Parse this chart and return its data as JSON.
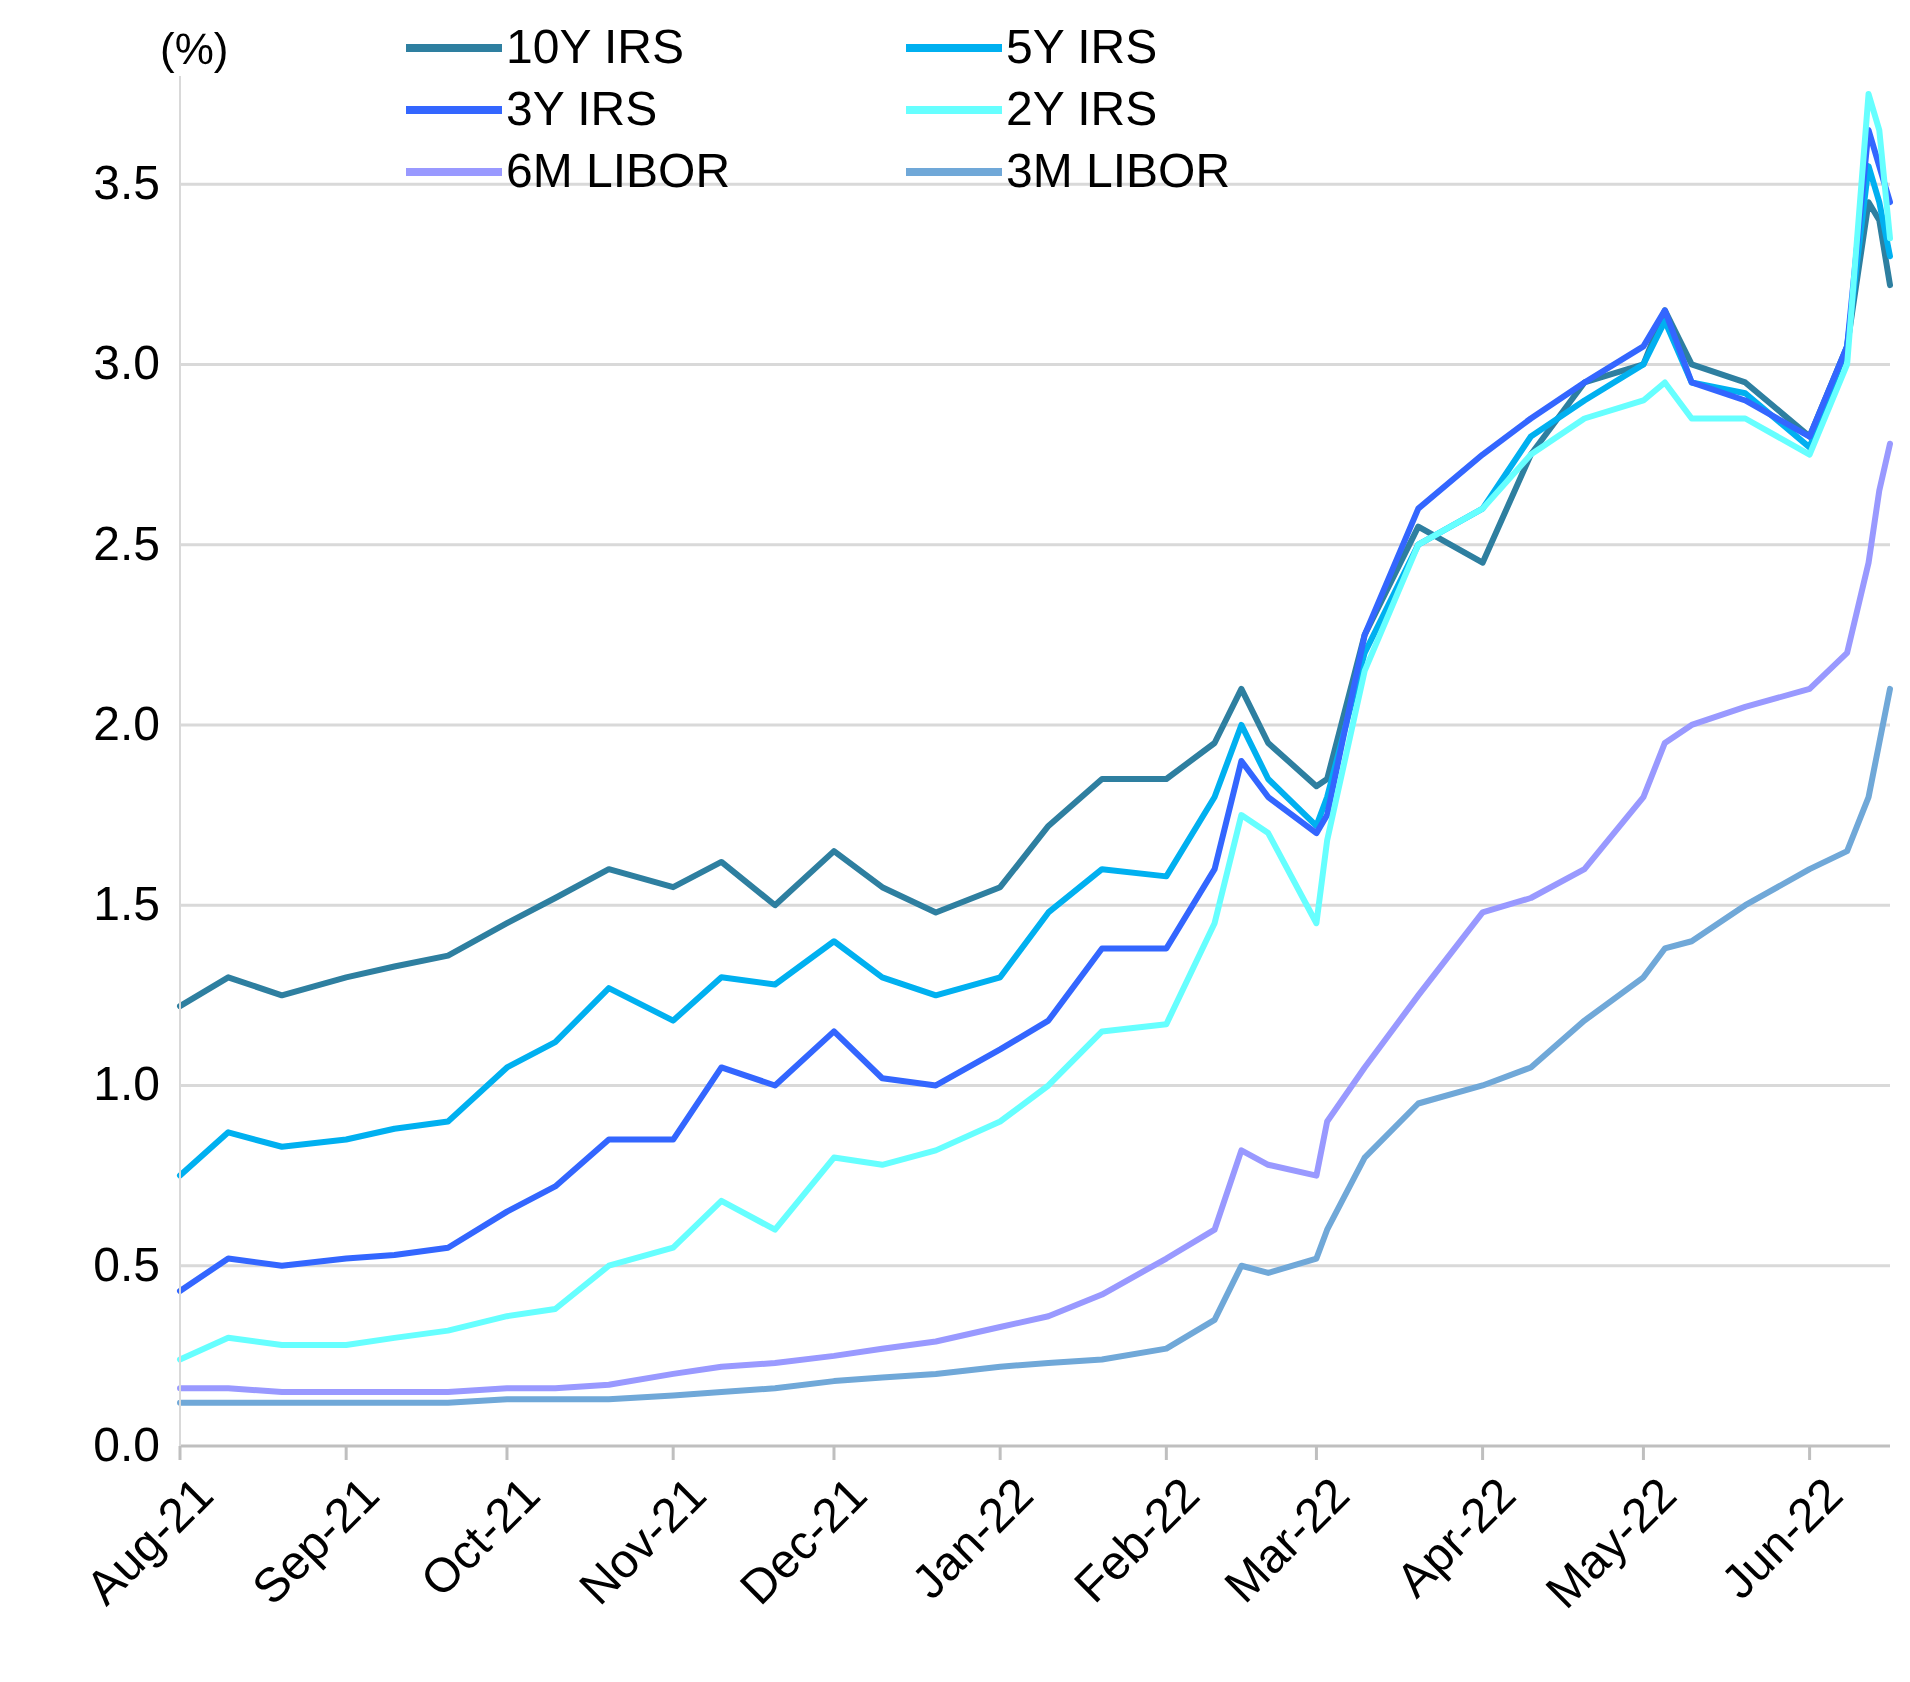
{
  "chart_data": {
    "type": "line",
    "ylabel": "(%)",
    "x": [
      "2021-08-01",
      "2021-08-10",
      "2021-08-20",
      "2021-09-01",
      "2021-09-10",
      "2021-09-20",
      "2021-10-01",
      "2021-10-10",
      "2021-10-20",
      "2021-11-01",
      "2021-11-10",
      "2021-11-20",
      "2021-12-01",
      "2021-12-10",
      "2021-12-20",
      "2022-01-01",
      "2022-01-10",
      "2022-01-20",
      "2022-02-01",
      "2022-02-10",
      "2022-02-15",
      "2022-02-20",
      "2022-03-01",
      "2022-03-03",
      "2022-03-10",
      "2022-03-20",
      "2022-04-01",
      "2022-04-10",
      "2022-04-20",
      "2022-05-01",
      "2022-05-05",
      "2022-05-10",
      "2022-05-20",
      "2022-06-01",
      "2022-06-08",
      "2022-06-12",
      "2022-06-14",
      "2022-06-16"
    ],
    "series": [
      {
        "name": "10Y IRS",
        "color": "#2e7fa0",
        "values": [
          1.22,
          1.3,
          1.25,
          1.3,
          1.33,
          1.36,
          1.45,
          1.52,
          1.6,
          1.55,
          1.62,
          1.5,
          1.65,
          1.55,
          1.48,
          1.55,
          1.72,
          1.85,
          1.85,
          1.95,
          2.1,
          1.95,
          1.83,
          1.85,
          2.25,
          2.55,
          2.45,
          2.75,
          2.95,
          3.0,
          3.15,
          3.0,
          2.95,
          2.8,
          3.05,
          3.45,
          3.4,
          3.22
        ]
      },
      {
        "name": "5Y IRS",
        "color": "#00b0f0",
        "values": [
          0.75,
          0.87,
          0.83,
          0.85,
          0.88,
          0.9,
          1.05,
          1.12,
          1.27,
          1.18,
          1.3,
          1.28,
          1.4,
          1.3,
          1.25,
          1.3,
          1.48,
          1.6,
          1.58,
          1.8,
          2.0,
          1.85,
          1.72,
          1.8,
          2.2,
          2.5,
          2.6,
          2.8,
          2.9,
          3.0,
          3.12,
          2.95,
          2.92,
          2.77,
          3.05,
          3.55,
          3.45,
          3.3
        ]
      },
      {
        "name": "3Y IRS",
        "color": "#3366ff",
        "values": [
          0.43,
          0.52,
          0.5,
          0.52,
          0.53,
          0.55,
          0.65,
          0.72,
          0.85,
          0.85,
          1.05,
          1.0,
          1.15,
          1.02,
          1.0,
          1.1,
          1.18,
          1.38,
          1.38,
          1.6,
          1.9,
          1.8,
          1.7,
          1.75,
          2.25,
          2.6,
          2.75,
          2.85,
          2.95,
          3.05,
          3.15,
          2.95,
          2.9,
          2.8,
          3.05,
          3.65,
          3.55,
          3.45
        ]
      },
      {
        "name": "2Y IRS",
        "color": "#66ffff",
        "values": [
          0.24,
          0.3,
          0.28,
          0.28,
          0.3,
          0.32,
          0.36,
          0.38,
          0.5,
          0.55,
          0.68,
          0.6,
          0.8,
          0.78,
          0.82,
          0.9,
          1.0,
          1.15,
          1.17,
          1.45,
          1.75,
          1.7,
          1.45,
          1.68,
          2.15,
          2.5,
          2.6,
          2.75,
          2.85,
          2.9,
          2.95,
          2.85,
          2.85,
          2.75,
          3.0,
          3.75,
          3.65,
          3.35
        ]
      },
      {
        "name": "6M LIBOR",
        "color": "#9999ff",
        "values": [
          0.16,
          0.16,
          0.15,
          0.15,
          0.15,
          0.15,
          0.16,
          0.16,
          0.17,
          0.2,
          0.22,
          0.23,
          0.25,
          0.27,
          0.29,
          0.33,
          0.36,
          0.42,
          0.52,
          0.6,
          0.82,
          0.78,
          0.75,
          0.9,
          1.05,
          1.25,
          1.48,
          1.52,
          1.6,
          1.8,
          1.95,
          2.0,
          2.05,
          2.1,
          2.2,
          2.45,
          2.65,
          2.78
        ]
      },
      {
        "name": "3M LIBOR",
        "color": "#70a8d8",
        "values": [
          0.12,
          0.12,
          0.12,
          0.12,
          0.12,
          0.12,
          0.13,
          0.13,
          0.13,
          0.14,
          0.15,
          0.16,
          0.18,
          0.19,
          0.2,
          0.22,
          0.23,
          0.24,
          0.27,
          0.35,
          0.5,
          0.48,
          0.52,
          0.6,
          0.8,
          0.95,
          1.0,
          1.05,
          1.18,
          1.3,
          1.38,
          1.4,
          1.5,
          1.6,
          1.65,
          1.8,
          1.95,
          2.1
        ]
      }
    ],
    "xlim": [
      "2021-08-01",
      "2022-06-16"
    ],
    "xticks": [
      {
        "value": "2021-08-01",
        "label": "Aug-21"
      },
      {
        "value": "2021-09-01",
        "label": "Sep-21"
      },
      {
        "value": "2021-10-01",
        "label": "Oct-21"
      },
      {
        "value": "2021-11-01",
        "label": "Nov-21"
      },
      {
        "value": "2021-12-01",
        "label": "Dec-21"
      },
      {
        "value": "2022-01-01",
        "label": "Jan-22"
      },
      {
        "value": "2022-02-01",
        "label": "Feb-22"
      },
      {
        "value": "2022-03-01",
        "label": "Mar-22"
      },
      {
        "value": "2022-04-01",
        "label": "Apr-22"
      },
      {
        "value": "2022-05-01",
        "label": "May-22"
      },
      {
        "value": "2022-06-01",
        "label": "Jun-22"
      }
    ],
    "ylim": [
      0,
      3.8
    ],
    "yticks": [
      {
        "value": 0,
        "label": "0.0"
      },
      {
        "value": 0.5,
        "label": "0.5"
      },
      {
        "value": 1,
        "label": "1.0"
      },
      {
        "value": 1.5,
        "label": "1.5"
      },
      {
        "value": 2,
        "label": "2.0"
      },
      {
        "value": 2.5,
        "label": "2.5"
      },
      {
        "value": 3,
        "label": "3.0"
      },
      {
        "value": 3.5,
        "label": "3.5"
      }
    ],
    "grid": "y",
    "legend": "top",
    "marker": "none",
    "line_style": "solid"
  }
}
